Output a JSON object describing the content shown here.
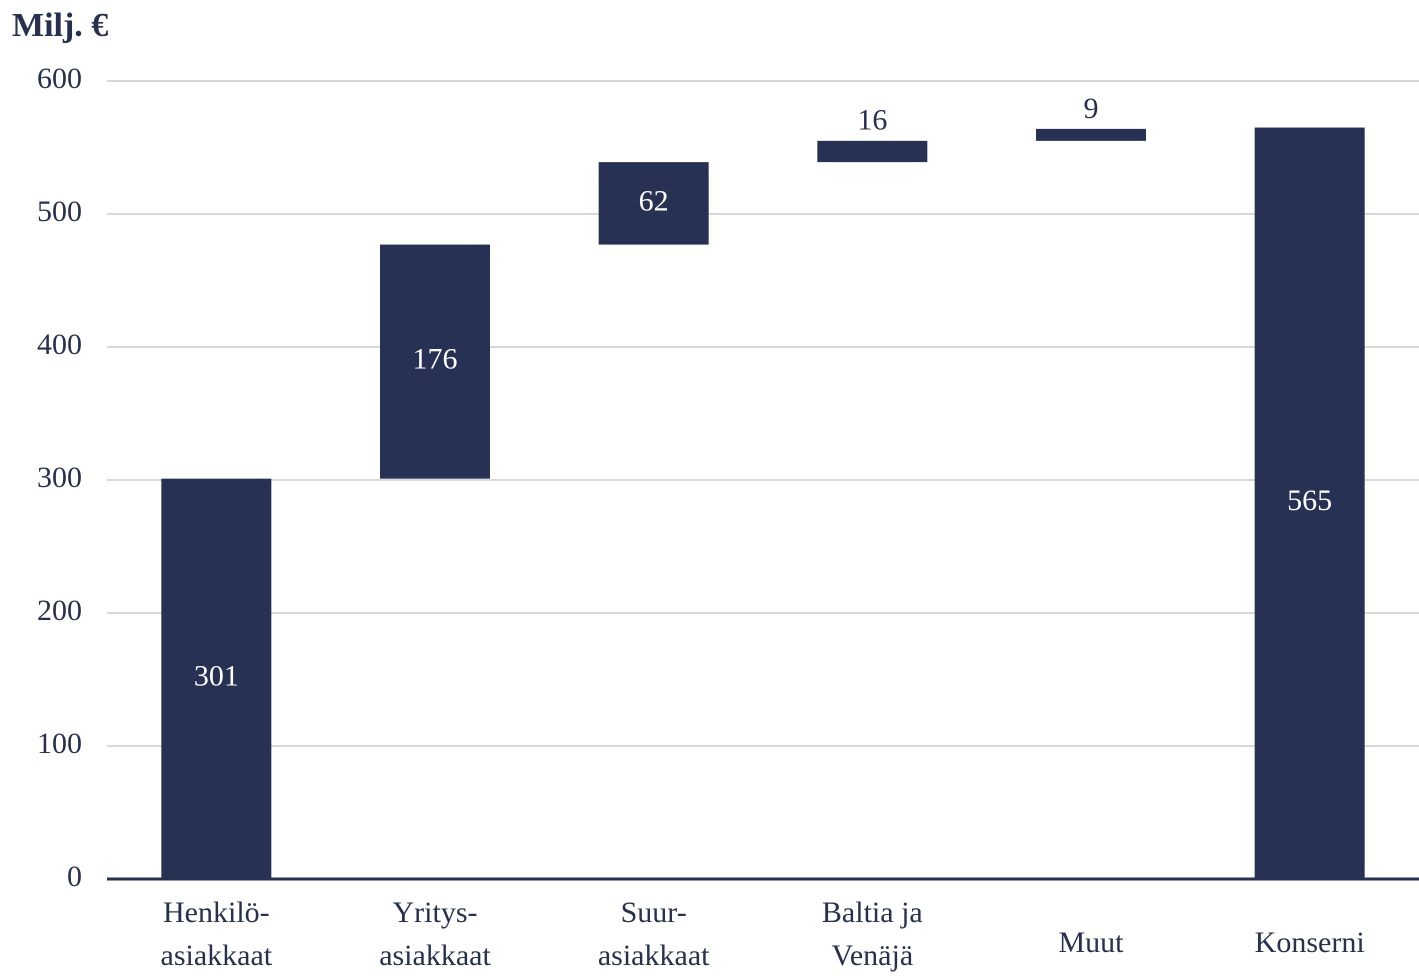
{
  "chart_data": {
    "type": "waterfall",
    "title": "Milj. €",
    "categories": [
      [
        "Henkilö-",
        "asiakkaat"
      ],
      [
        "Yritys-",
        "asiakkaat"
      ],
      [
        "Suur-",
        "asiakkaat"
      ],
      [
        "Baltia ja",
        "Venäjä"
      ],
      [
        "Muut"
      ],
      [
        "Konserni"
      ]
    ],
    "values": [
      301,
      176,
      62,
      16,
      9,
      565
    ],
    "measure": [
      "relative",
      "relative",
      "relative",
      "relative",
      "relative",
      "total"
    ],
    "color": "#263154",
    "ylim": [
      0,
      600
    ],
    "yticks": [
      0,
      100,
      200,
      300,
      400,
      500,
      600
    ],
    "grid": true
  }
}
